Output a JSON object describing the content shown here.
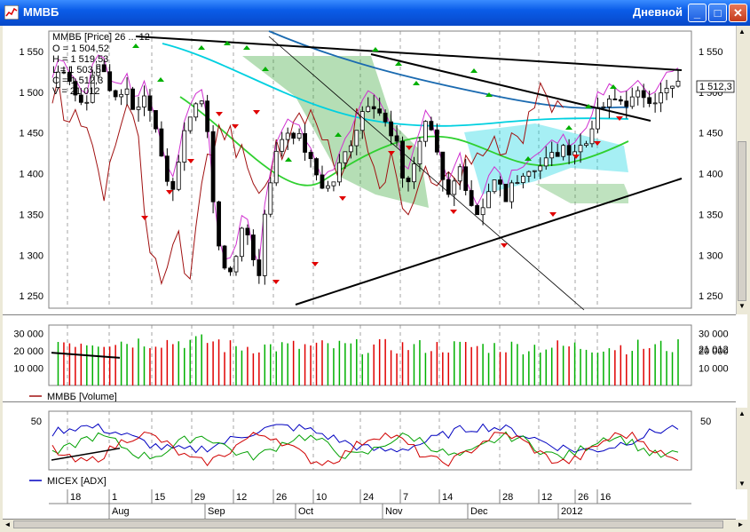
{
  "window": {
    "title": "ММВБ",
    "period_selector": "Дневной",
    "controls": {
      "minimize": "_",
      "maximize": "□",
      "close": "✕"
    }
  },
  "colors": {
    "titlebar": "#0a5ce8",
    "price_candles": "#000000",
    "kumo_fill": "#2aa02a",
    "cloud_cyan": "#00d0e0",
    "ma_blue": "#1a6ab0",
    "up_arrow": "#00b000",
    "down_arrow": "#e00000",
    "volume_up": "#00b000",
    "volume_down": "#e00000",
    "adx_line": "#0000c0",
    "dmi_plus": "#00a000",
    "dmi_minus": "#d00000"
  },
  "price_pane": {
    "info_lines": [
      "ММВБ [Price] 26 ... 12",
      "O = 1 504,52",
      "H = 1 519,53",
      "L = 1 503,5",
      "C = 1 512,3",
      "V = 21 012"
    ],
    "y_labels": [
      "1 550",
      "1 500",
      "1 450",
      "1 400",
      "1 350",
      "1 300",
      "1 250"
    ],
    "last_value": "1 512,3"
  },
  "volume_pane": {
    "y_labels": [
      "30 000",
      "20 000",
      "10 000"
    ],
    "last_value": "21 012",
    "legend": "ММВБ [Volume]"
  },
  "adx_pane": {
    "y_label_left": "50",
    "y_label_right": "50",
    "legend": "MICEX [ADX]"
  },
  "time_axis": {
    "days": [
      "18",
      "1",
      "15",
      "29",
      "12",
      "26",
      "10",
      "24",
      "7",
      "14",
      "28",
      "12",
      "26",
      "16"
    ],
    "months": [
      "Aug",
      "Sep",
      "Oct",
      "Nov",
      "Dec",
      "2012"
    ]
  }
}
